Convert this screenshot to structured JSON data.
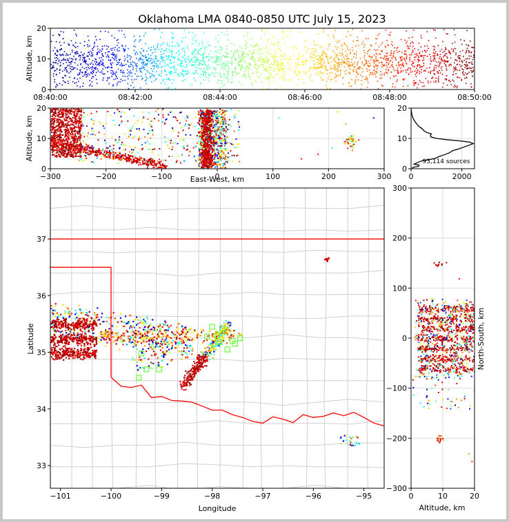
{
  "chart_data": [
    {
      "panel": "time-altitude",
      "type": "scatter",
      "title": "Oklahoma LMA 0840-0850 UTC July 15, 2023",
      "ylabel": "Altitude, km",
      "xlim": [
        "08:40:00",
        "08:50:00"
      ],
      "ylim": [
        0,
        20
      ],
      "x_ticks": [
        "08:40:00",
        "08:42:00",
        "08:44:00",
        "08:46:00",
        "08:48:00",
        "08:50:00"
      ],
      "y_ticks": [
        "0",
        "10",
        "20"
      ],
      "color_encoding": "time (blue to dark red)",
      "colormap": [
        "#00008f",
        "#0000ff",
        "#00ffff",
        "#7fff7f",
        "#ffff00",
        "#ff7f00",
        "#ff0000",
        "#7f0000"
      ]
    },
    {
      "panel": "east-west-altitude",
      "type": "scatter",
      "xlabel": "East-West, km",
      "ylabel": "Altitude, km",
      "xlim": [
        -300,
        300
      ],
      "ylim": [
        0,
        20
      ],
      "x_ticks": [
        "−300",
        "−200",
        "−100",
        "0",
        "100",
        "200",
        "300"
      ],
      "y_ticks": [
        "0",
        "10",
        "20"
      ],
      "grid": true
    },
    {
      "panel": "altitude-histogram",
      "type": "line",
      "xlim": [
        0,
        2500
      ],
      "ylim": [
        0,
        20
      ],
      "x_ticks": [
        "0",
        "2000"
      ],
      "y_ticks": [
        "0",
        "10",
        "20"
      ],
      "annotation": "93,114 sources",
      "profile": [
        [
          30,
          0.2
        ],
        [
          150,
          0.6
        ],
        [
          300,
          0.8
        ],
        [
          320,
          1.2
        ],
        [
          120,
          1.5
        ],
        [
          250,
          2.0
        ],
        [
          420,
          2.6
        ],
        [
          700,
          3.0
        ],
        [
          950,
          3.4
        ],
        [
          1100,
          4.0
        ],
        [
          1300,
          4.6
        ],
        [
          1500,
          5.2
        ],
        [
          1650,
          6.0
        ],
        [
          1900,
          6.6
        ],
        [
          2100,
          7.2
        ],
        [
          2300,
          7.8
        ],
        [
          2450,
          8.3
        ],
        [
          2300,
          8.8
        ],
        [
          1900,
          9.2
        ],
        [
          1400,
          9.6
        ],
        [
          1000,
          10.0
        ],
        [
          780,
          10.5
        ],
        [
          760,
          11.0
        ],
        [
          800,
          11.5
        ],
        [
          600,
          12.0
        ],
        [
          500,
          12.6
        ],
        [
          440,
          13.2
        ],
        [
          300,
          14.0
        ],
        [
          200,
          15.0
        ],
        [
          120,
          16.0
        ],
        [
          60,
          17.0
        ],
        [
          30,
          18.0
        ],
        [
          10,
          19.0
        ],
        [
          0,
          20.0
        ]
      ]
    },
    {
      "panel": "plan-view",
      "type": "scatter",
      "xlabel": "Longitude",
      "ylabel": "Latitude",
      "xlim": [
        -101.2,
        -94.6
      ],
      "ylim": [
        32.6,
        37.9
      ],
      "x_ticks": [
        "−101",
        "−100",
        "−99",
        "−98",
        "−97",
        "−96",
        "−95"
      ],
      "y_ticks": [
        "33",
        "34",
        "35",
        "36",
        "37"
      ],
      "station_color": "#66ff33",
      "border_color": "#ff0000"
    },
    {
      "panel": "altitude-north-south",
      "type": "scatter",
      "xlabel": "Altitude, km",
      "ylabel": "North-South, km",
      "xlim": [
        0,
        20
      ],
      "ylim": [
        -300,
        300
      ],
      "x_ticks": [
        "0",
        "10",
        "20"
      ],
      "y_ticks": [
        "300",
        "200",
        "100",
        "0",
        "−100",
        "−200",
        "−300"
      ],
      "grid": true
    }
  ]
}
